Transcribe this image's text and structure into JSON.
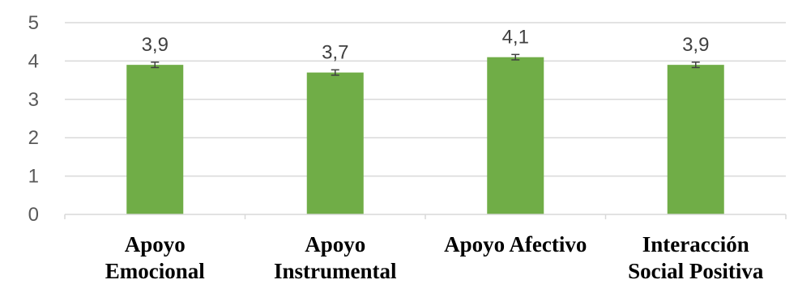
{
  "chart_data": {
    "type": "bar",
    "categories": [
      [
        "Apoyo",
        "Emocional"
      ],
      [
        "Apoyo",
        "Instrumental"
      ],
      [
        "Apoyo Afectivo"
      ],
      [
        "Interacción",
        "Social Positiva"
      ]
    ],
    "values": [
      3.9,
      3.7,
      4.1,
      3.9
    ],
    "data_labels": [
      "3,9",
      "3,7",
      "4,1",
      "3,9"
    ],
    "error": [
      0.07,
      0.07,
      0.07,
      0.07
    ],
    "title": "",
    "xlabel": "",
    "ylabel": "",
    "ylim": [
      0,
      5
    ],
    "yticks": [
      0,
      1,
      2,
      3,
      4,
      5
    ],
    "grid": true,
    "legend": "none",
    "colors": {
      "bar": "#70ad47",
      "grid": "#d9d9d9",
      "errorbar": "#404040"
    }
  }
}
